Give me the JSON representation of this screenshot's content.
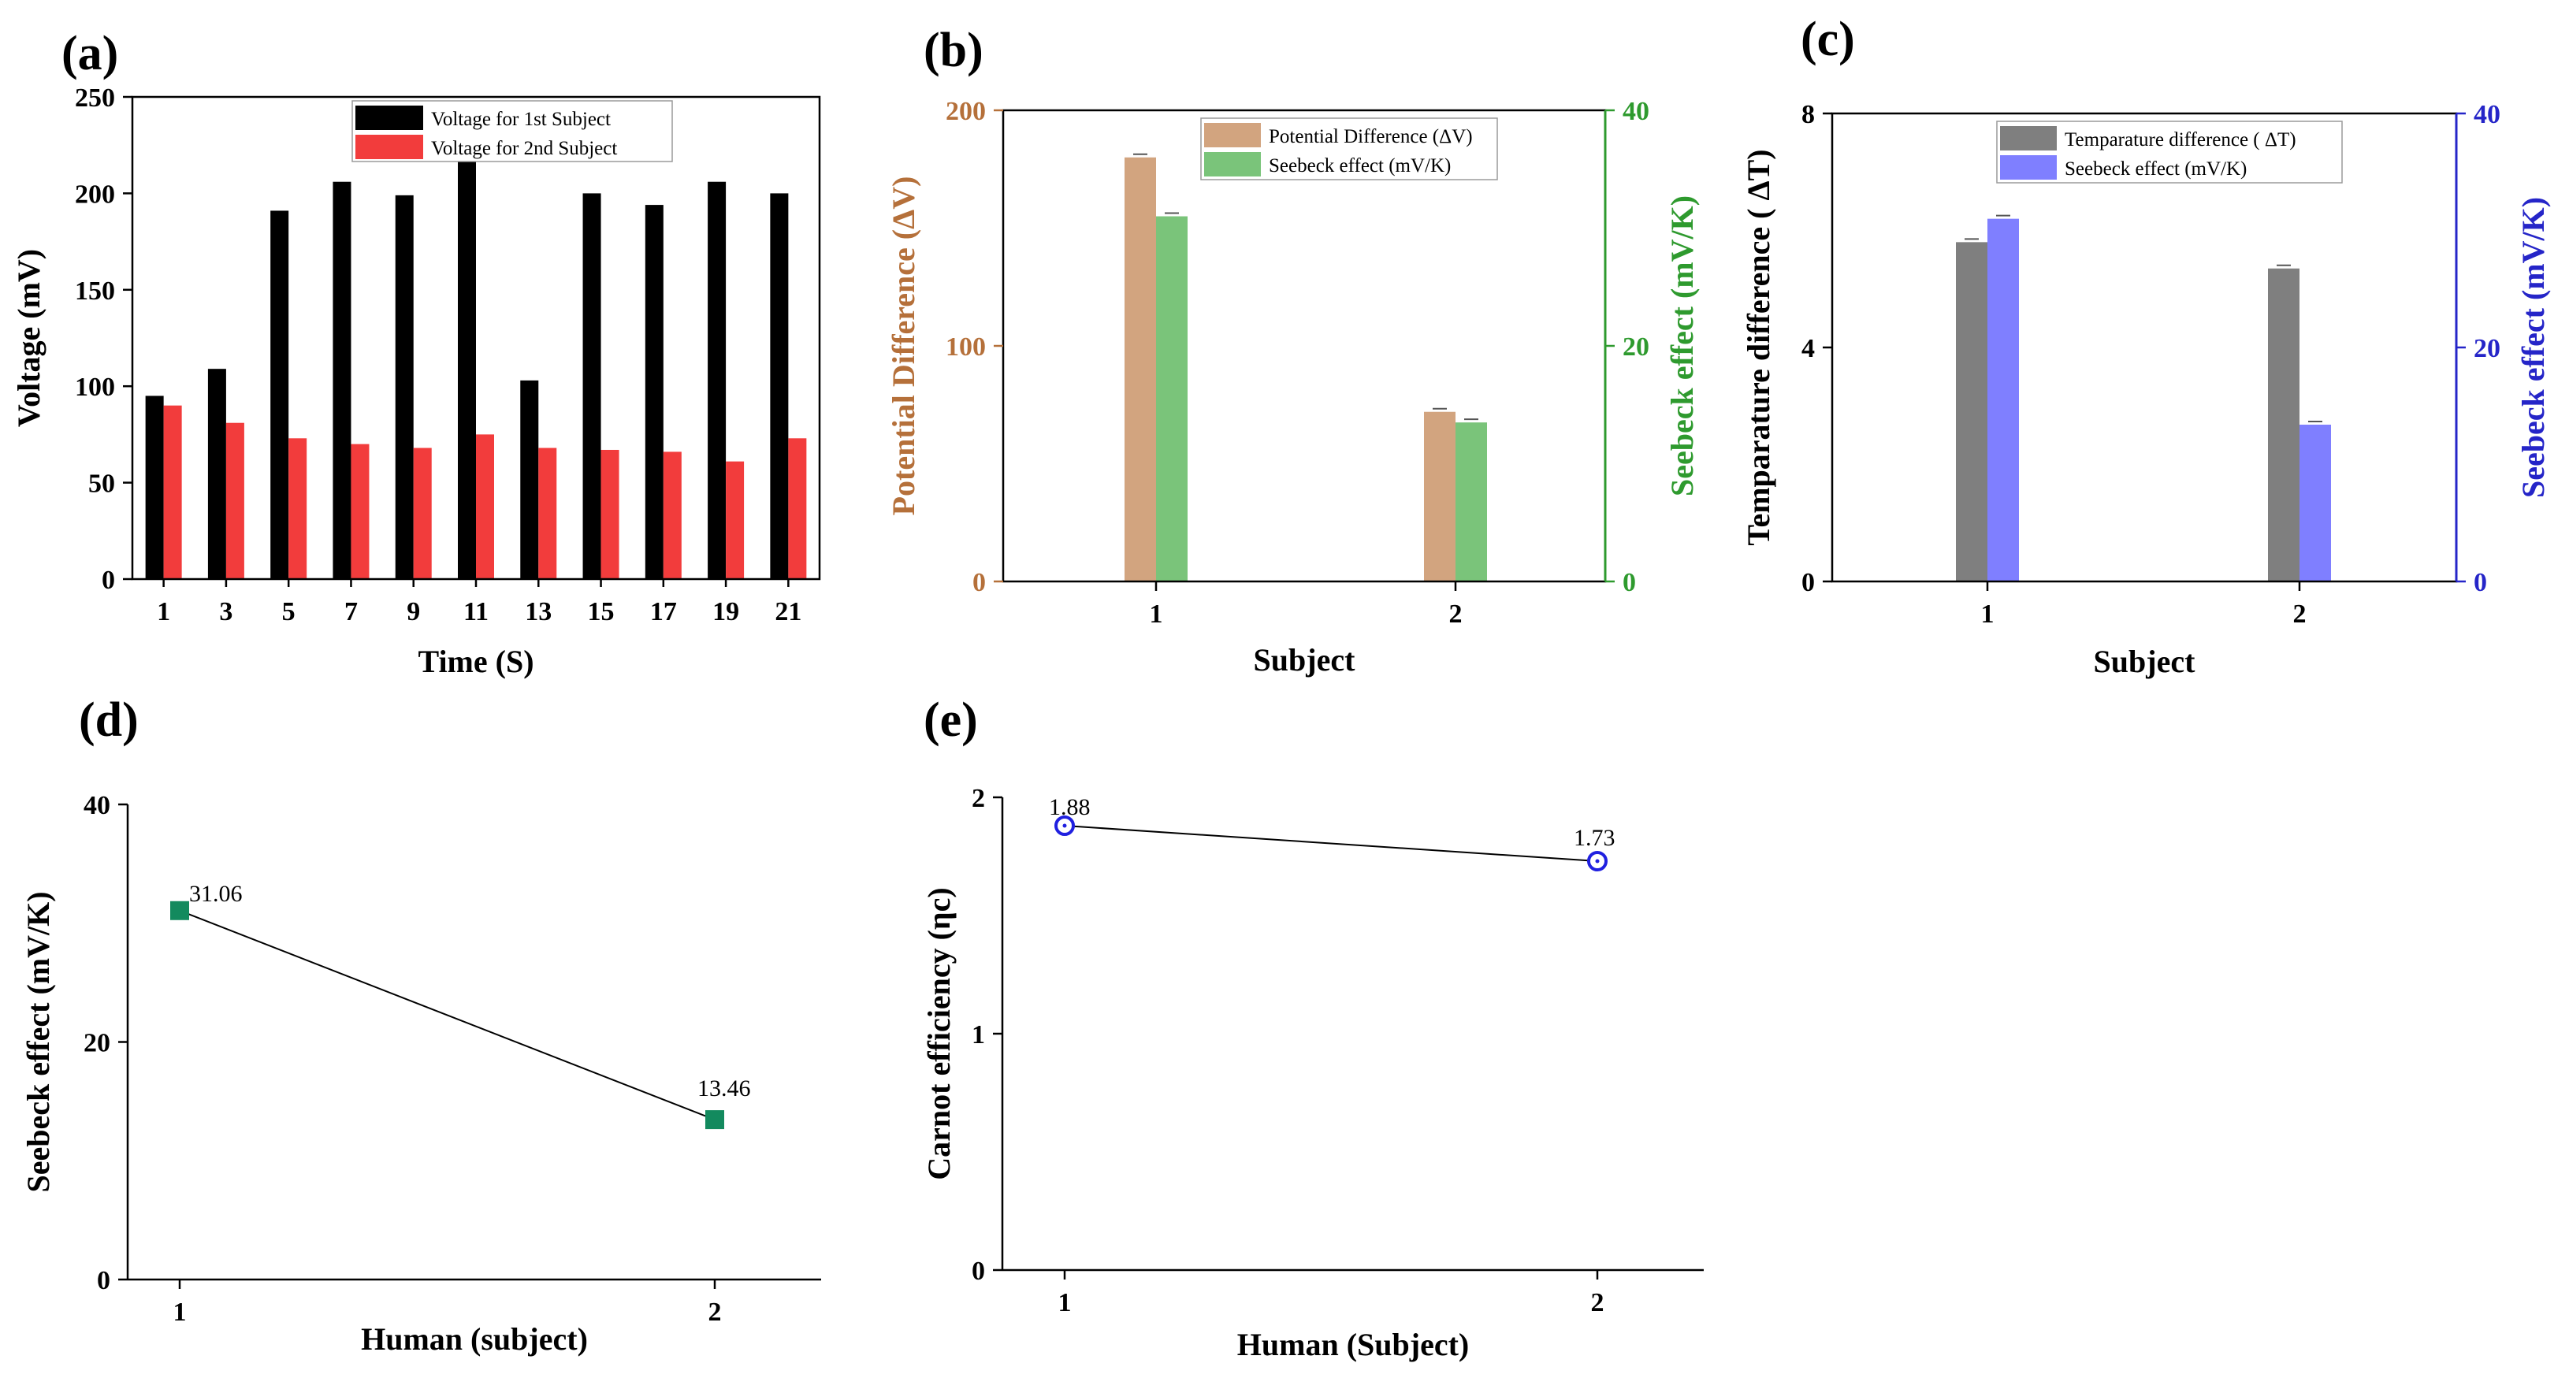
{
  "panels": {
    "a": "(a)",
    "b": "(b)",
    "c": "(c)",
    "d": "(d)",
    "e": "(e)"
  },
  "chart_data": [
    {
      "panel": "(a)",
      "type": "bar",
      "xlabel": "Time (S)",
      "ylabel": "Voltage (mV)",
      "ylim": [
        0,
        250
      ],
      "yticks": [
        0,
        50,
        100,
        150,
        200,
        250
      ],
      "categories": [
        "1",
        "3",
        "5",
        "7",
        "9",
        "11",
        "13",
        "15",
        "17",
        "19",
        "21"
      ],
      "series": [
        {
          "name": "Voltage for 1st Subject",
          "color": "#000000",
          "values": [
            95,
            109,
            191,
            206,
            199,
            222,
            103,
            200,
            194,
            206,
            200
          ]
        },
        {
          "name": "Voltage for 2nd Subject",
          "color": "#f23c3c",
          "values": [
            90,
            81,
            73,
            70,
            68,
            75,
            68,
            67,
            66,
            61,
            73
          ]
        }
      ],
      "legend": "top-right",
      "grid": false
    },
    {
      "panel": "(b)",
      "type": "bar",
      "xlabel": "Subject",
      "ylabel": "Potential Difference (ΔV)",
      "ylabel_right": "Seebeck effect (mV/K)",
      "ylim": [
        0,
        200
      ],
      "ylim_right": [
        0,
        40
      ],
      "yticks": [
        0,
        100,
        200
      ],
      "yticks_right": [
        0,
        20,
        40
      ],
      "categories": [
        "1",
        "2"
      ],
      "series": [
        {
          "name": "Potential Difference (ΔV)",
          "axis": "left",
          "color": "#d2a47f",
          "values": [
            180,
            72
          ]
        },
        {
          "name": "Seebeck effect (mV/K)",
          "axis": "right",
          "color": "#7ac47a",
          "values": [
            31.0,
            13.5
          ]
        }
      ],
      "left_color": "#b5703a",
      "right_color": "#2e9a2e",
      "legend": "top-right",
      "grid": false
    },
    {
      "panel": "(c)",
      "type": "bar",
      "xlabel": "Subject",
      "ylabel": "Temparature difference ( ΔT)",
      "ylabel_right": "Seebeck effect (mV/K)",
      "ylim": [
        0,
        8
      ],
      "ylim_right": [
        0,
        40
      ],
      "yticks": [
        0,
        4,
        8
      ],
      "yticks_right": [
        0,
        20,
        40
      ],
      "categories": [
        "1",
        "2"
      ],
      "series": [
        {
          "name": "Temparature difference ( ΔT)",
          "axis": "left",
          "color": "#7f7f7f",
          "values": [
            5.8,
            5.35
          ]
        },
        {
          "name": "Seebeck effect (mV/K)",
          "axis": "right",
          "color": "#7f7fff",
          "values": [
            31.0,
            13.4
          ]
        }
      ],
      "right_color": "#2525c8",
      "legend": "top-right",
      "grid": false
    },
    {
      "panel": "(d)",
      "type": "line",
      "xlabel": "Human (subject)",
      "ylabel": "Seebeck effect (mV/K)",
      "ylim": [
        0,
        40
      ],
      "yticks": [
        0,
        20,
        40
      ],
      "x": [
        "1",
        "2"
      ],
      "values": [
        31.06,
        13.46
      ],
      "data_labels": [
        "31.06",
        "13.46"
      ],
      "marker": "square",
      "marker_color": "#138a5e",
      "grid": false
    },
    {
      "panel": "(e)",
      "type": "line",
      "xlabel": "Human (Subject)",
      "ylabel": "Carnot efficiency (ηc)",
      "ylim": [
        0,
        2
      ],
      "yticks": [
        0,
        1,
        2
      ],
      "x": [
        "1",
        "2"
      ],
      "values": [
        1.88,
        1.73
      ],
      "data_labels": [
        "1.88",
        "1.73"
      ],
      "marker": "open-circle",
      "marker_color": "#2020e0",
      "grid": false
    }
  ]
}
